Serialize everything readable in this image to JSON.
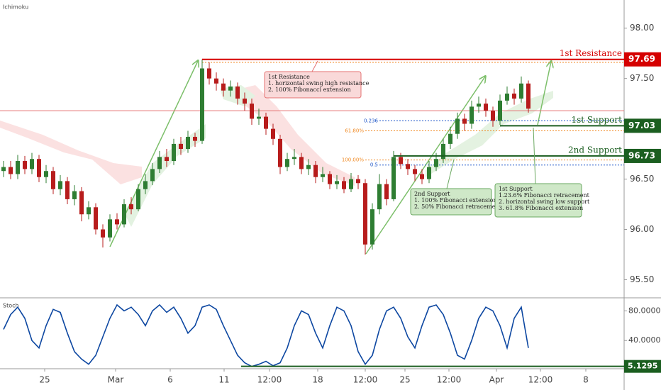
{
  "chart_data": [
    {
      "type": "candlestick",
      "indicator": "Ichimoku",
      "xlim": [
        -0.5,
        87.5
      ],
      "xticks": [
        {
          "value": 5.8,
          "label": "25"
        },
        {
          "value": 15.8,
          "label": "Mar"
        },
        {
          "value": 23.5,
          "label": "6"
        },
        {
          "value": 31.1,
          "label": "11"
        },
        {
          "value": 37.5,
          "label": "12:00"
        },
        {
          "value": 44.3,
          "label": "18"
        },
        {
          "value": 51,
          "label": "12:00"
        },
        {
          "value": 56.6,
          "label": "25"
        },
        {
          "value": 62.8,
          "label": "12:00"
        },
        {
          "value": 69.5,
          "label": "Apr"
        },
        {
          "value": 75.7,
          "label": "12:00"
        },
        {
          "value": 82.1,
          "label": "8"
        }
      ],
      "ylim": [
        95.32,
        98.28
      ],
      "yticks": [
        {
          "value": 95.5,
          "label": "95.50"
        },
        {
          "value": 96,
          "label": "96.00"
        },
        {
          "value": 96.5,
          "label": "96.50"
        },
        {
          "value": 97.5,
          "label": "97.50"
        },
        {
          "value": 98,
          "label": "98.00"
        }
      ],
      "grid": false,
      "up_color": "#2e7d32",
      "down_color": "#b71c1c",
      "open": [
        96.58,
        96.62,
        96.55,
        96.68,
        96.6,
        96.7,
        96.52,
        96.58,
        96.4,
        96.48,
        96.3,
        96.38,
        96.15,
        96.22,
        96.0,
        95.92,
        96.1,
        96.05,
        96.25,
        96.2,
        96.4,
        96.48,
        96.6,
        96.72,
        96.68,
        96.85,
        96.8,
        96.92,
        96.88,
        97.6,
        97.5,
        97.45,
        97.38,
        97.42,
        97.3,
        97.25,
        97.1,
        97.12,
        97.0,
        96.9,
        96.62,
        96.7,
        96.72,
        96.6,
        96.64,
        96.52,
        96.55,
        96.45,
        96.48,
        96.4,
        96.5,
        96.46,
        95.85,
        96.2,
        96.45,
        96.3,
        96.72,
        96.65,
        96.6,
        96.55,
        96.5,
        96.62,
        96.7,
        96.85,
        96.95,
        97.1,
        97.05,
        97.22,
        97.25,
        97.18,
        97.08,
        97.28,
        97.35,
        97.3,
        97.45
      ],
      "high": [
        96.68,
        96.68,
        96.74,
        96.73,
        96.76,
        96.74,
        96.64,
        96.62,
        96.54,
        96.52,
        96.44,
        96.42,
        96.28,
        96.26,
        96.05,
        96.15,
        96.16,
        96.3,
        96.32,
        96.45,
        96.55,
        96.66,
        96.78,
        96.8,
        96.9,
        96.92,
        96.98,
        96.96,
        97.69,
        97.66,
        97.56,
        97.5,
        97.48,
        97.46,
        97.36,
        97.3,
        97.2,
        97.16,
        97.05,
        96.94,
        96.76,
        96.8,
        96.76,
        96.7,
        96.68,
        96.62,
        96.58,
        96.54,
        96.52,
        96.56,
        96.54,
        96.5,
        96.26,
        96.55,
        96.5,
        96.78,
        96.76,
        96.7,
        96.64,
        96.6,
        96.68,
        96.76,
        96.9,
        97.02,
        97.16,
        97.15,
        97.28,
        97.32,
        97.3,
        97.22,
        97.34,
        97.42,
        97.4,
        97.52,
        97.48
      ],
      "low": [
        96.52,
        96.5,
        96.5,
        96.55,
        96.55,
        96.47,
        96.46,
        96.35,
        96.34,
        96.25,
        96.24,
        96.08,
        96.1,
        95.95,
        95.82,
        95.88,
        96.0,
        96.02,
        96.15,
        96.18,
        96.35,
        96.44,
        96.56,
        96.62,
        96.64,
        96.74,
        96.76,
        96.82,
        96.85,
        97.44,
        97.38,
        97.32,
        97.32,
        97.24,
        97.18,
        97.04,
        97.04,
        96.94,
        96.84,
        96.55,
        96.58,
        96.64,
        96.55,
        96.54,
        96.46,
        96.47,
        96.4,
        96.4,
        96.36,
        96.37,
        96.4,
        95.75,
        95.8,
        96.15,
        96.24,
        96.28,
        96.6,
        96.54,
        96.48,
        96.45,
        96.46,
        96.58,
        96.66,
        96.8,
        96.9,
        96.98,
        97.0,
        97.16,
        97.12,
        97.02,
        97.04,
        97.24,
        97.24,
        97.26,
        97.16
      ],
      "close": [
        96.62,
        96.55,
        96.68,
        96.6,
        96.7,
        96.52,
        96.58,
        96.4,
        96.48,
        96.3,
        96.38,
        96.15,
        96.22,
        96.0,
        95.92,
        96.1,
        96.05,
        96.25,
        96.2,
        96.4,
        96.48,
        96.6,
        96.72,
        96.68,
        96.85,
        96.8,
        96.92,
        96.88,
        97.6,
        97.5,
        97.45,
        97.38,
        97.42,
        97.3,
        97.25,
        97.1,
        97.12,
        97.0,
        96.9,
        96.62,
        96.7,
        96.72,
        96.6,
        96.64,
        96.52,
        96.55,
        96.45,
        96.48,
        96.4,
        96.5,
        96.46,
        95.85,
        96.2,
        96.45,
        96.3,
        96.72,
        96.65,
        96.6,
        96.55,
        96.5,
        96.62,
        96.7,
        96.85,
        96.95,
        97.1,
        97.05,
        97.22,
        97.25,
        97.18,
        97.08,
        97.28,
        97.35,
        97.3,
        97.45,
        97.2
      ],
      "levels": [
        {
          "name": "1st Resistance",
          "value": 97.69,
          "color": "#d50000"
        },
        {
          "name": "1st Support",
          "value": 97.03,
          "color": "#1b5e20"
        },
        {
          "name": "2nd Support",
          "value": 96.73,
          "color": "#1b5e20"
        }
      ],
      "fib_levels": [
        {
          "label": "0.236",
          "value": 97.08,
          "color": "#1e56c8"
        },
        {
          "label": "61.80%",
          "value": 96.98,
          "color": "#f08a24"
        },
        {
          "label": "100.00%",
          "value": 96.69,
          "color": "#f08a24"
        },
        {
          "label": "0.5",
          "value": 96.64,
          "color": "#1e56c8"
        }
      ],
      "reference_lines": [
        {
          "value": 97.18,
          "color": "#e57373"
        },
        {
          "value": 97.66,
          "color": "#f08a24"
        }
      ],
      "annotations": [
        {
          "title": "1st Resistance",
          "lines": [
            "1.  horizontal swing high resistance",
            "2. 100% Fibonacci extension"
          ]
        },
        {
          "title": "2nd Support",
          "lines": [
            "1. 100% Fibonacci extension",
            "2. 50% Fibonacci retracement"
          ]
        },
        {
          "title": "1st Support",
          "lines": [
            "1.23.6% Fibonacci retracement",
            "2. horizontal swing low  support",
            "3. 61.8% Fibonacci extension"
          ]
        }
      ]
    },
    {
      "type": "line",
      "indicator": "Stoch",
      "color": "#0d47a1",
      "ylim": [
        1.95,
        97.6
      ],
      "yticks": [
        {
          "value": 80,
          "label": "80.0000"
        },
        {
          "value": 40,
          "label": "40.0000"
        }
      ],
      "values": [
        55,
        75,
        85,
        70,
        40,
        30,
        60,
        82,
        78,
        50,
        25,
        15,
        8,
        20,
        45,
        70,
        88,
        80,
        85,
        75,
        60,
        80,
        88,
        78,
        85,
        70,
        50,
        60,
        85,
        88,
        82,
        60,
        40,
        20,
        10,
        5,
        8,
        12,
        6,
        10,
        30,
        60,
        80,
        75,
        50,
        30,
        60,
        85,
        80,
        60,
        25,
        8,
        20,
        55,
        80,
        85,
        70,
        45,
        30,
        60,
        85,
        88,
        75,
        50,
        20,
        15,
        40,
        70,
        85,
        80,
        60,
        30,
        70,
        85,
        30
      ],
      "level": {
        "value": 5.1295,
        "color": "#1b5e20"
      }
    }
  ]
}
